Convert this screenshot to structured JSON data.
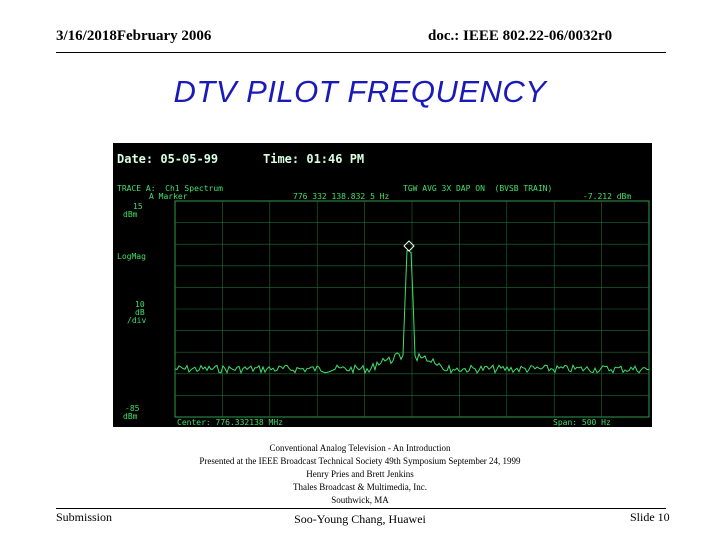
{
  "header": {
    "left": "3/16/2018February 2006",
    "right": "doc.: IEEE 802.22-06/0032r0"
  },
  "title": "DTV PILOT FREQUENCY",
  "analyzer": {
    "date_line": "Date: 05-05-99",
    "time_line": "Time: 01:46 PM",
    "trace_line": "TRACE A:  Ch1 Spectrum",
    "marker_line": "A Marker",
    "marker_freq": "776 332 138.832 5 Hz",
    "mode_line": "TGW AVG 3X DAP ON  (BVSB TRAIN)",
    "marker_level": "-7.212 dBm",
    "ref_level": "15",
    "ref_unit": "dBm",
    "scale_type": "LogMag",
    "scale_value": "10",
    "scale_unit": "dB",
    "scale_div": "/div",
    "bottom_level": "-85",
    "bottom_unit": "dBm",
    "center": "Center: 776.332138 MHz",
    "span": "Span: 500 Hz",
    "trace_color": "#3fe06a",
    "background_color": "#000000"
  },
  "credits": [
    "Conventional Analog Television - An Introduction",
    "Presented at the IEEE Broadcast Technical Society 49th Symposium September 24, 1999",
    "Henry Pries and Brett Jenkins",
    "Thales Broadcast & Multimedia, Inc.",
    "Southwick, MA"
  ],
  "footer": {
    "left": "Submission",
    "center": "Soo-Young Chang, Huawei",
    "right": "Slide 10"
  },
  "colors": {
    "title": "#1a1ab8",
    "text": "#000000"
  }
}
